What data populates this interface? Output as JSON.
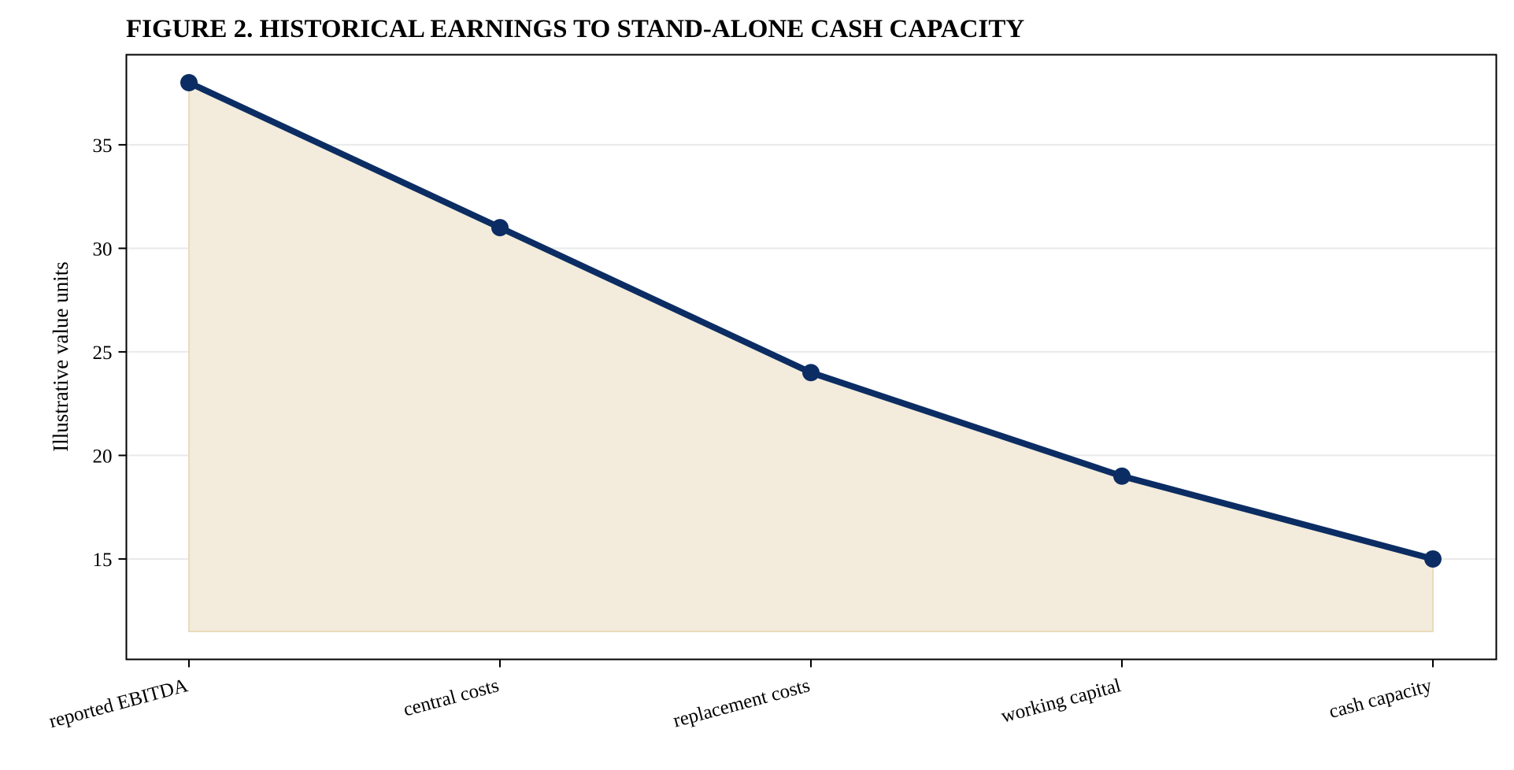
{
  "chart_data": {
    "type": "area",
    "title": "FIGURE 2. HISTORICAL EARNINGS TO STAND-ALONE CASH CAPACITY",
    "xlabel": "",
    "ylabel": "Illustrative value units",
    "categories": [
      "reported EBITDA",
      "central costs",
      "replacement costs",
      "working capital",
      "cash capacity"
    ],
    "series": [
      {
        "values": [
          38,
          31,
          24,
          19,
          15
        ]
      }
    ],
    "fill_baseline": 11.5,
    "ylim": [
      10.15,
      39.35
    ],
    "yticks": [
      15,
      20,
      25,
      30,
      35
    ],
    "grid": "horizontal",
    "legend": "none",
    "colors": {
      "line": "#0b2d63",
      "fill": "#f3ebdb",
      "fill_edge": "#e9dcbc",
      "grid": "#e9e9e9",
      "axis": "#000000"
    }
  }
}
